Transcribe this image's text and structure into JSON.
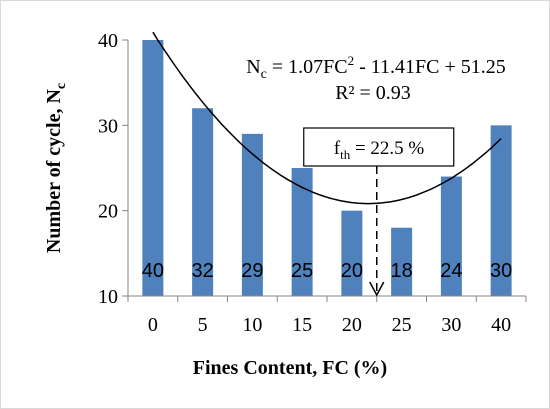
{
  "chart_data": {
    "type": "bar",
    "categories": [
      "0",
      "5",
      "10",
      "15",
      "20",
      "25",
      "30",
      "40"
    ],
    "values": [
      40,
      32,
      29,
      25,
      20,
      18,
      24,
      30
    ],
    "data_labels": [
      "40",
      "32",
      "29",
      "25",
      "20",
      "18",
      "24",
      "30"
    ],
    "xlabel": "Fines Content, FC (%)",
    "ylabel": "Number of cycle, N",
    "ylabel_subscript": "c",
    "ylim": [
      10,
      40
    ],
    "yticks": [
      10,
      20,
      30,
      40
    ],
    "bar_color": "#4f81bd",
    "grid": false,
    "legend": "none",
    "trendline": {
      "kind": "polynomial",
      "a": 1.07,
      "b": -11.41,
      "c": 51.25,
      "color": "#000000",
      "equation": {
        "lhs_main": "N",
        "lhs_sub": "c",
        "mid1": " = 1.07FC",
        "sup": "2",
        "mid2": " - 11.41FC + 51.25"
      },
      "r2": {
        "pre": "R",
        "sup": "²",
        "post": " = 0.93"
      }
    },
    "threshold": {
      "value": 22.5,
      "label_main": "f",
      "label_sub": "th",
      "label_rest": " = 22.5 %"
    }
  }
}
